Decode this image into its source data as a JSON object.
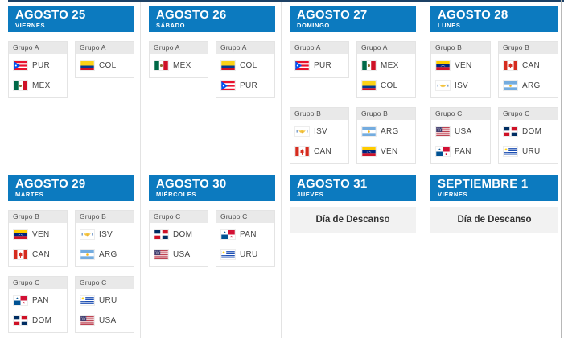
{
  "colors": {
    "header_blue": "#0c7abf",
    "top_line": "#1c4166",
    "separator": "#e3e3e3",
    "right_edge": "#b8b8b8",
    "card_border": "#e4e4e4",
    "card_header_bg": "#e9e9e9",
    "card_header_text": "#4d4d4d",
    "team_text": "#444444",
    "rest_bg": "#f2f2f2",
    "rest_text": "#333333"
  },
  "days": [
    {
      "date": "AGOSTO 25",
      "weekday": "VIERNES",
      "rows": [
        [
          {
            "group": "Grupo A",
            "teams": [
              {
                "code": "PUR",
                "flag_icon": "puerto-rico-flag-icon"
              },
              {
                "code": "MEX",
                "flag_icon": "mexico-flag-icon"
              }
            ]
          },
          {
            "group": "Grupo A",
            "teams": [
              {
                "code": "COL",
                "flag_icon": "colombia-flag-icon"
              }
            ]
          }
        ]
      ]
    },
    {
      "date": "AGOSTO 26",
      "weekday": "SÁBADO",
      "rows": [
        [
          {
            "group": "Grupo A",
            "teams": [
              {
                "code": "MEX",
                "flag_icon": "mexico-flag-icon"
              }
            ]
          },
          {
            "group": "Grupo A",
            "teams": [
              {
                "code": "COL",
                "flag_icon": "colombia-flag-icon"
              },
              {
                "code": "PUR",
                "flag_icon": "puerto-rico-flag-icon"
              }
            ]
          }
        ]
      ]
    },
    {
      "date": "AGOSTO 27",
      "weekday": "DOMINGO",
      "rows": [
        [
          {
            "group": "Grupo A",
            "teams": [
              {
                "code": "PUR",
                "flag_icon": "puerto-rico-flag-icon"
              }
            ]
          },
          {
            "group": "Grupo A",
            "teams": [
              {
                "code": "MEX",
                "flag_icon": "mexico-flag-icon"
              },
              {
                "code": "COL",
                "flag_icon": "colombia-flag-icon"
              }
            ]
          }
        ],
        [
          {
            "group": "Grupo B",
            "teams": [
              {
                "code": "ISV",
                "flag_icon": "us-virgin-islands-flag-icon"
              },
              {
                "code": "CAN",
                "flag_icon": "canada-flag-icon"
              }
            ]
          },
          {
            "group": "Grupo B",
            "teams": [
              {
                "code": "ARG",
                "flag_icon": "argentina-flag-icon"
              },
              {
                "code": "VEN",
                "flag_icon": "venezuela-flag-icon"
              }
            ]
          }
        ]
      ]
    },
    {
      "date": "AGOSTO 28",
      "weekday": "LUNES",
      "rows": [
        [
          {
            "group": "Grupo B",
            "teams": [
              {
                "code": "VEN",
                "flag_icon": "venezuela-flag-icon"
              },
              {
                "code": "ISV",
                "flag_icon": "us-virgin-islands-flag-icon"
              }
            ]
          },
          {
            "group": "Grupo B",
            "teams": [
              {
                "code": "CAN",
                "flag_icon": "canada-flag-icon"
              },
              {
                "code": "ARG",
                "flag_icon": "argentina-flag-icon"
              }
            ]
          }
        ],
        [
          {
            "group": "Grupo C",
            "teams": [
              {
                "code": "USA",
                "flag_icon": "usa-flag-icon"
              },
              {
                "code": "PAN",
                "flag_icon": "panama-flag-icon"
              }
            ]
          },
          {
            "group": "Grupo C",
            "teams": [
              {
                "code": "DOM",
                "flag_icon": "dominican-republic-flag-icon"
              },
              {
                "code": "URU",
                "flag_icon": "uruguay-flag-icon"
              }
            ]
          }
        ]
      ]
    },
    {
      "date": "AGOSTO 29",
      "weekday": "MARTES",
      "rows": [
        [
          {
            "group": "Grupo B",
            "teams": [
              {
                "code": "VEN",
                "flag_icon": "venezuela-flag-icon"
              },
              {
                "code": "CAN",
                "flag_icon": "canada-flag-icon"
              }
            ]
          },
          {
            "group": "Grupo B",
            "teams": [
              {
                "code": "ISV",
                "flag_icon": "us-virgin-islands-flag-icon"
              },
              {
                "code": "ARG",
                "flag_icon": "argentina-flag-icon"
              }
            ]
          }
        ],
        [
          {
            "group": "Grupo C",
            "teams": [
              {
                "code": "PAN",
                "flag_icon": "panama-flag-icon"
              },
              {
                "code": "DOM",
                "flag_icon": "dominican-republic-flag-icon"
              }
            ]
          },
          {
            "group": "Grupo C",
            "teams": [
              {
                "code": "URU",
                "flag_icon": "uruguay-flag-icon"
              },
              {
                "code": "USA",
                "flag_icon": "usa-flag-icon"
              }
            ]
          }
        ]
      ]
    },
    {
      "date": "AGOSTO 30",
      "weekday": "MIÉRCOLES",
      "rows": [
        [
          {
            "group": "Grupo C",
            "teams": [
              {
                "code": "DOM",
                "flag_icon": "dominican-republic-flag-icon"
              },
              {
                "code": "USA",
                "flag_icon": "usa-flag-icon"
              }
            ]
          },
          {
            "group": "Grupo C",
            "teams": [
              {
                "code": "PAN",
                "flag_icon": "panama-flag-icon"
              },
              {
                "code": "URU",
                "flag_icon": "uruguay-flag-icon"
              }
            ]
          }
        ]
      ]
    },
    {
      "date": "AGOSTO 31",
      "weekday": "JUEVES",
      "rest_label": "Día de Descanso"
    },
    {
      "date": "SEPTIEMBRE 1",
      "weekday": "VIERNES",
      "rest_label": "Día de Descanso"
    }
  ]
}
